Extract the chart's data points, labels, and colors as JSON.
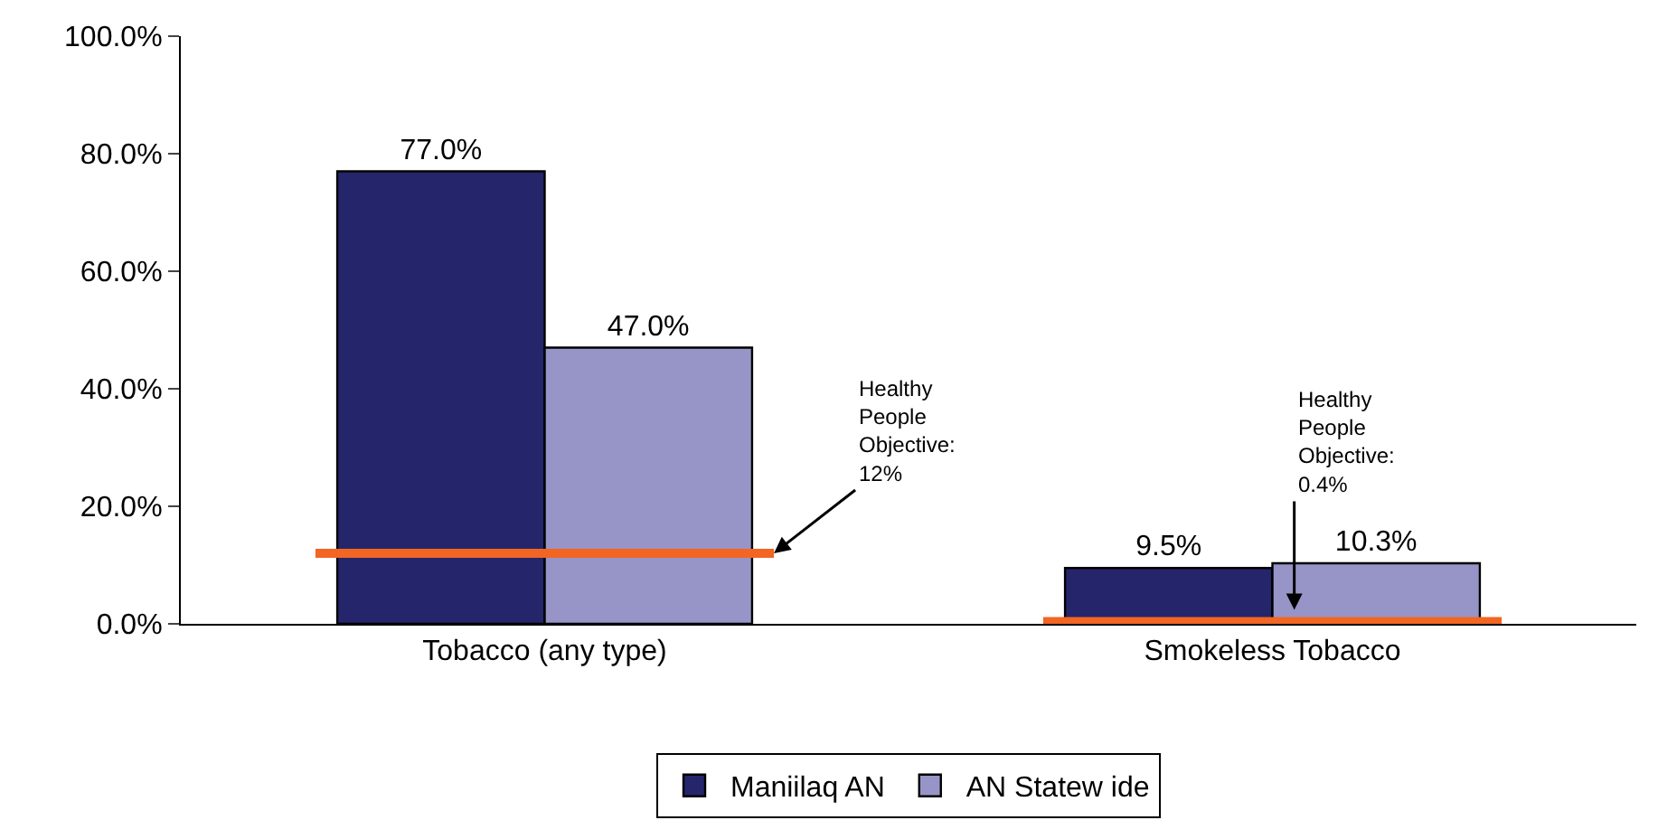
{
  "chart_data": {
    "type": "bar",
    "categories": [
      "Tobacco (any type)",
      "Smokeless Tobacco"
    ],
    "series": [
      {
        "name": "Maniilaq AN",
        "color": "#25256b",
        "values": [
          77.0,
          9.5
        ],
        "value_labels": [
          "77.0%",
          "9.5%"
        ]
      },
      {
        "name": "AN Statew ide",
        "color": "#9795c8",
        "values": [
          47.0,
          10.3
        ],
        "value_labels": [
          "47.0%",
          "10.3%"
        ]
      }
    ],
    "ylim": [
      0,
      100
    ],
    "yticks": [
      {
        "value": 0,
        "label": "0.0%"
      },
      {
        "value": 20,
        "label": "20.0%"
      },
      {
        "value": 40,
        "label": "40.0%"
      },
      {
        "value": 60,
        "label": "60.0%"
      },
      {
        "value": 80,
        "label": "80.0%"
      },
      {
        "value": 100,
        "label": "100.0%"
      }
    ],
    "ref_lines": [
      {
        "axis": "y",
        "value": 12,
        "label": "Healthy\nPeople\nObjective:\n12%",
        "color": "#f26522"
      },
      {
        "axis": "y",
        "value": 0.4,
        "label": "Healthy\nPeople\nObjective:\n0.4%",
        "color": "#f26522"
      }
    ],
    "legend": "bottom"
  }
}
